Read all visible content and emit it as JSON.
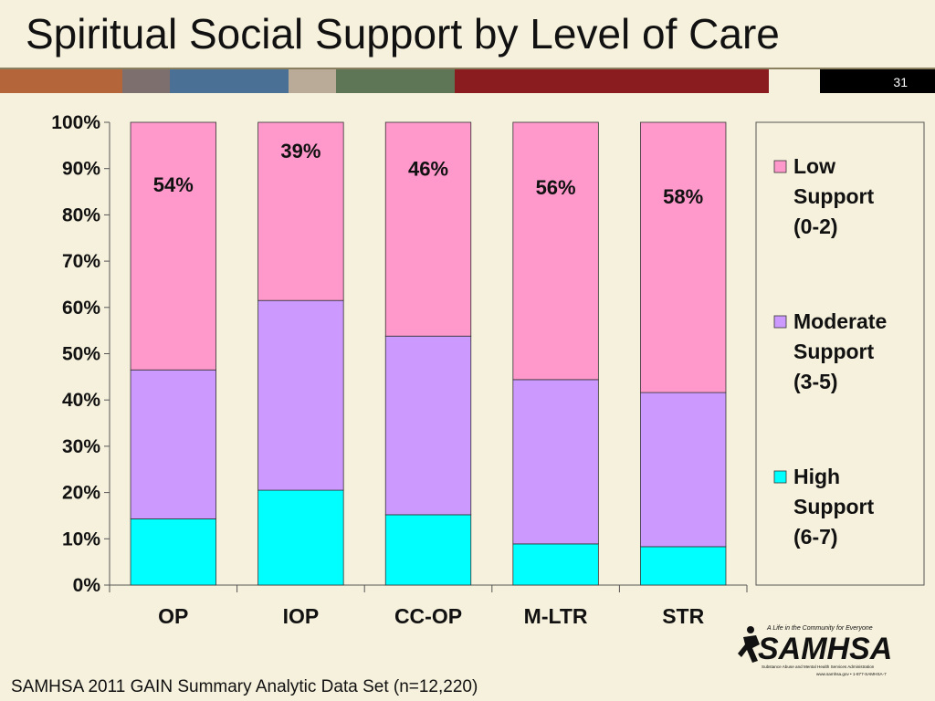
{
  "slide": {
    "title": "Spiritual Social Support by Level of Care",
    "page_number": "31",
    "footer": "SAMHSA 2011 GAIN Summary Analytic Data Set (n=12,220)",
    "stripe_colors": [
      "#b5653a",
      "#7d6f6e",
      "#4a7095",
      "#b9ab98",
      "#5e7656",
      "#8a1b1f",
      "#f6f1dc",
      "#000000"
    ]
  },
  "logo": {
    "tagline": "A Life in the Community for Everyone",
    "name": "SAMHSA",
    "subtitle": "Substance Abuse and Mental Health Services Administration",
    "contact": "www.samhsa.gov • 1-877-SAMHSA-7"
  },
  "chart_data": {
    "type": "bar",
    "stacked": true,
    "categories": [
      "OP",
      "IOP",
      "CC-OP",
      "M-LTR",
      "STR"
    ],
    "series": [
      {
        "name": "High Support (6-7)",
        "color": "#00ffff",
        "values": [
          14.3,
          20.5,
          15.2,
          8.9,
          8.3
        ]
      },
      {
        "name": "Moderate Support (3-5)",
        "color": "#cc99ff",
        "values": [
          32.2,
          41.0,
          38.6,
          35.5,
          33.3
        ]
      },
      {
        "name": "Low Support (0-2)",
        "color": "#ff99cc",
        "values": [
          53.5,
          38.5,
          46.2,
          55.6,
          58.4
        ]
      }
    ],
    "data_labels": [
      "54%",
      "39%",
      "46%",
      "56%",
      "58%"
    ],
    "ylim": [
      0,
      100
    ],
    "yticks": [
      "0%",
      "10%",
      "20%",
      "30%",
      "40%",
      "50%",
      "60%",
      "70%",
      "80%",
      "90%",
      "100%"
    ],
    "legend": [
      {
        "lines": [
          "Low",
          "Support",
          "(0-2)"
        ],
        "color": "#ff99cc"
      },
      {
        "lines": [
          "Moderate",
          "Support",
          "(3-5)"
        ],
        "color": "#cc99ff"
      },
      {
        "lines": [
          "High",
          "Support",
          "(6-7)"
        ],
        "color": "#00ffff"
      }
    ],
    "legend_position": "right",
    "grid": false
  }
}
